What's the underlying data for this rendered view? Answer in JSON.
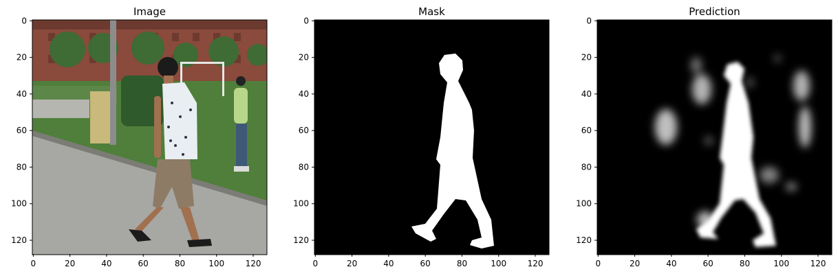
{
  "panels": [
    {
      "title": "Image",
      "x_ticks": [
        "0",
        "20",
        "40",
        "60",
        "80",
        "100",
        "120"
      ],
      "y_ticks": [
        "0",
        "20",
        "40",
        "60",
        "80",
        "100",
        "120"
      ]
    },
    {
      "title": "Mask",
      "x_ticks": [
        "0",
        "20",
        "40",
        "60",
        "80",
        "100",
        "120"
      ],
      "y_ticks": [
        "0",
        "20",
        "40",
        "60",
        "80",
        "100",
        "120"
      ]
    },
    {
      "title": "Prediction",
      "x_ticks": [
        "0",
        "20",
        "40",
        "60",
        "80",
        "100",
        "120"
      ],
      "y_ticks": [
        "0",
        "20",
        "40",
        "60",
        "80",
        "100",
        "120"
      ]
    }
  ],
  "colors": {
    "sky_building": "#8a4a3c",
    "grass": "#4f7f3a",
    "road": "#a7a7a3",
    "mask_bg": "#000000",
    "mask_fg": "#ffffff"
  }
}
